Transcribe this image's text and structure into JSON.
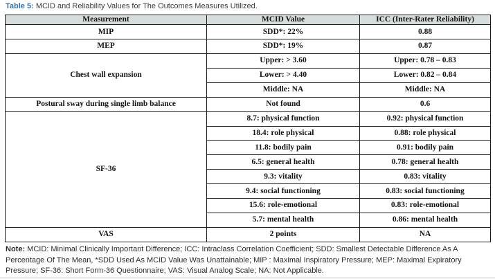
{
  "colors": {
    "accent": "#3173ad",
    "header-bg": "#d7dcdd",
    "border": "#1c1c1c"
  },
  "title": {
    "label": "Table 5:",
    "text": " MCID and Reliability Values for The Outcomes Measures Utilized."
  },
  "table": {
    "headers": [
      "Measurement",
      "MCID Value",
      "ICC (Inter-Rater Reliability)"
    ],
    "groups": [
      {
        "measurement": "MIP",
        "rows": [
          {
            "mcid": "SDD*: 22%",
            "icc": "0.88"
          }
        ]
      },
      {
        "measurement": "MEP",
        "rows": [
          {
            "mcid": "SDD*: 19%",
            "icc": "0.87"
          }
        ]
      },
      {
        "measurement": "Chest wall expansion",
        "rows": [
          {
            "mcid": "Upper: > 3.60",
            "icc": "Upper: 0.78 – 0.83"
          },
          {
            "mcid": "Lower: > 4.40",
            "icc": "Lower: 0.82 – 0.84"
          },
          {
            "mcid": "Middle: NA",
            "icc": "Middle: NA"
          }
        ]
      },
      {
        "measurement": "Postural sway during single limb balance",
        "rows": [
          {
            "mcid": "Not found",
            "icc": "0.6"
          }
        ]
      },
      {
        "measurement": "SF-36",
        "rows": [
          {
            "mcid": "8.7: physical function",
            "icc": "0.92: physical function"
          },
          {
            "mcid": "18.4: role physical",
            "icc": "0.88: role physical"
          },
          {
            "mcid": "11.8: bodily pain",
            "icc": "0.91: bodily pain"
          },
          {
            "mcid": "6.5: general health",
            "icc": "0.78: general health"
          },
          {
            "mcid": "9.3: vitality",
            "icc": "0.83: vitality"
          },
          {
            "mcid": "9.4: social functioning",
            "icc": "0.83: social functioning"
          },
          {
            "mcid": "15.6: role-emotional",
            "icc": "0.83: role-emotional"
          },
          {
            "mcid": "5.7: mental health",
            "icc": "0.86: mental health"
          }
        ]
      },
      {
        "measurement": "VAS",
        "rows": [
          {
            "mcid": "2 points",
            "icc": "NA"
          }
        ]
      }
    ]
  },
  "note": {
    "label": "Note:",
    "text": " MCID: Minimal Clinically Important Difference; ICC: Intraclass Correlation Coefficient; SDD: Smallest Detectable Difference As A Percentage Of The Mean, *SDD Used As MCID Value Was Unattainable; MIP : Maximal Inspiratory Pressure; MEP: Maximal Expiratory Pressure; SF-36: Short Form-36 Questionnaire; VAS: Visual Analog Scale; NA: Not Applicable."
  }
}
